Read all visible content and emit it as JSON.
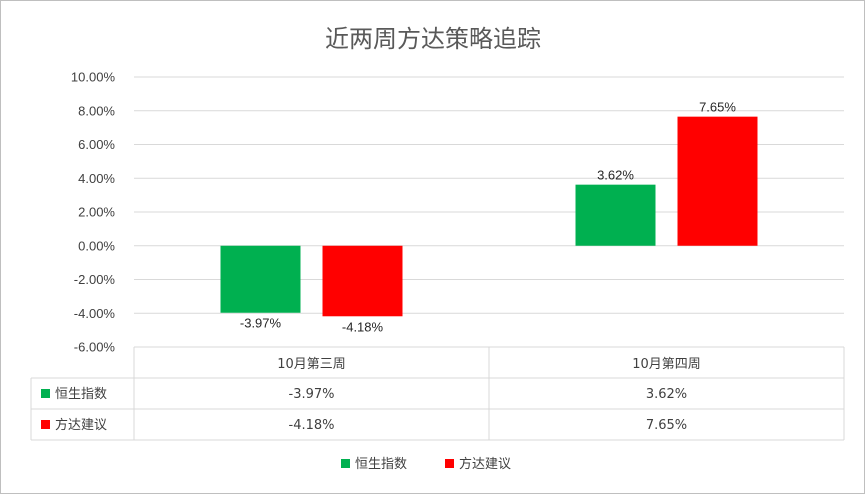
{
  "chart_data": {
    "type": "bar",
    "title": "近两周方达策略追踪",
    "categories": [
      "10月第三周",
      "10月第四周"
    ],
    "series": [
      {
        "name": "恒生指数",
        "values": [
          -3.97,
          3.62
        ],
        "labels": [
          "-3.97%",
          "3.62%"
        ],
        "color": "#00b050"
      },
      {
        "name": "方达建议",
        "values": [
          -4.18,
          7.65
        ],
        "labels": [
          "-4.18%",
          "7.65%"
        ],
        "color": "#ff0000"
      }
    ],
    "ylim": [
      -6,
      10
    ],
    "yticks": [
      "-6.00%",
      "-4.00%",
      "-2.00%",
      "0.00%",
      "2.00%",
      "4.00%",
      "6.00%",
      "8.00%",
      "10.00%"
    ],
    "grid": true,
    "legend_position": "bottom",
    "data_table": true
  }
}
